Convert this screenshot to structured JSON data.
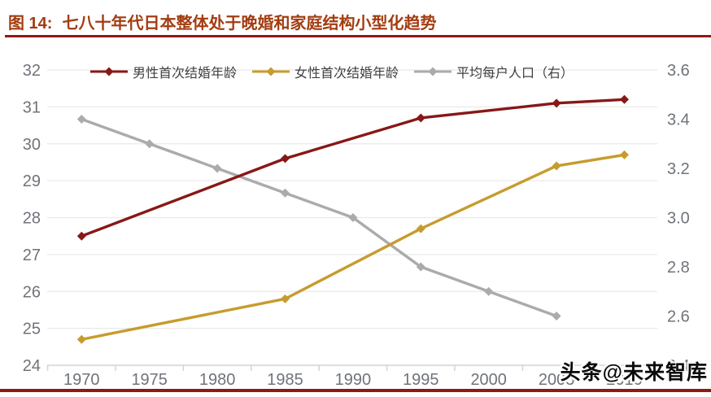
{
  "header": {
    "figure_label": "图 14:",
    "title": "七八十年代日本整体处于晚婚和家庭结构小型化趋势"
  },
  "watermark": "头条@未来智库",
  "colors": {
    "accent_rule": "#8e1a15",
    "title_text": "#a33c10",
    "axis_text": "#6f737a",
    "gridline": "#eaeaea",
    "axis_line": "#d4d4d4"
  },
  "chart_data": {
    "type": "line",
    "title": "七八十年代日本整体处于晚婚和家庭结构小型化趋势",
    "grid": "horizontal",
    "legend_position": "top-center",
    "x_categories": [
      "1970",
      "1975",
      "1980",
      "1985",
      "1990",
      "1995",
      "2000",
      "2005",
      "2010"
    ],
    "left_axis": {
      "min": 24,
      "max": 32,
      "tick_labels": [
        "32",
        "31",
        "30",
        "29",
        "28",
        "27",
        "26",
        "25",
        "24"
      ]
    },
    "right_axis": {
      "min": 2.4,
      "max": 3.6,
      "tick_labels": [
        "3.6",
        "3.4",
        "3.2",
        "3.0",
        "2.8",
        "2.6",
        "2.4"
      ]
    },
    "series": [
      {
        "key": "male-first-marriage-age",
        "name": "男性首次结婚年龄",
        "axis": "left",
        "color": "#871817",
        "points": [
          [
            "1970",
            27.5
          ],
          [
            "1985",
            29.6
          ],
          [
            "1995",
            30.7
          ],
          [
            "2005",
            31.1
          ],
          [
            "2010",
            31.2
          ]
        ]
      },
      {
        "key": "female-first-marriage-age",
        "name": "女性首次结婚年龄",
        "axis": "left",
        "color": "#c69c2e",
        "points": [
          [
            "1970",
            24.7
          ],
          [
            "1985",
            25.8
          ],
          [
            "1995",
            27.7
          ],
          [
            "2005",
            29.4
          ],
          [
            "2010",
            29.7
          ]
        ]
      },
      {
        "key": "avg-household-size",
        "name": "平均每户人口（右）",
        "axis": "right",
        "color": "#ababab",
        "points": [
          [
            "1970",
            3.4
          ],
          [
            "1975",
            3.3
          ],
          [
            "1980",
            3.2
          ],
          [
            "1985",
            3.1
          ],
          [
            "1990",
            3.0
          ],
          [
            "1995",
            2.8
          ],
          [
            "2000",
            2.7
          ],
          [
            "2005",
            2.6
          ]
        ]
      }
    ]
  }
}
